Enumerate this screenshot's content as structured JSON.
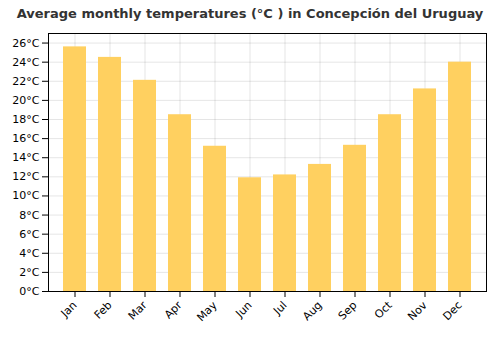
{
  "chart_data": {
    "type": "bar",
    "title": "Average monthly temperatures (°C ) in Concepción del Uruguay",
    "categories": [
      "Jan",
      "Feb",
      "Mar",
      "Apr",
      "May",
      "Jun",
      "Jul",
      "Aug",
      "Sep",
      "Oct",
      "Nov",
      "Dec"
    ],
    "values": [
      25.6,
      24.5,
      22.1,
      18.5,
      15.2,
      11.9,
      12.2,
      13.3,
      15.3,
      18.5,
      21.2,
      24.0
    ],
    "color": "#FFD060",
    "ylim": [
      0,
      27
    ],
    "yticks": [
      {
        "value": 0,
        "label": "0°C"
      },
      {
        "value": 2,
        "label": "2°C"
      },
      {
        "value": 4,
        "label": "4°C"
      },
      {
        "value": 6,
        "label": "6°C"
      },
      {
        "value": 8,
        "label": "8°C"
      },
      {
        "value": 10,
        "label": "10°C"
      },
      {
        "value": 12,
        "label": "12°C"
      },
      {
        "value": 14,
        "label": "14°C"
      },
      {
        "value": 16,
        "label": "16°C"
      },
      {
        "value": 18,
        "label": "18°C"
      },
      {
        "value": 20,
        "label": "20°C"
      },
      {
        "value": 22,
        "label": "22°C"
      },
      {
        "value": 24,
        "label": "24°C"
      },
      {
        "value": 26,
        "label": "26°C"
      }
    ],
    "grid": true
  }
}
